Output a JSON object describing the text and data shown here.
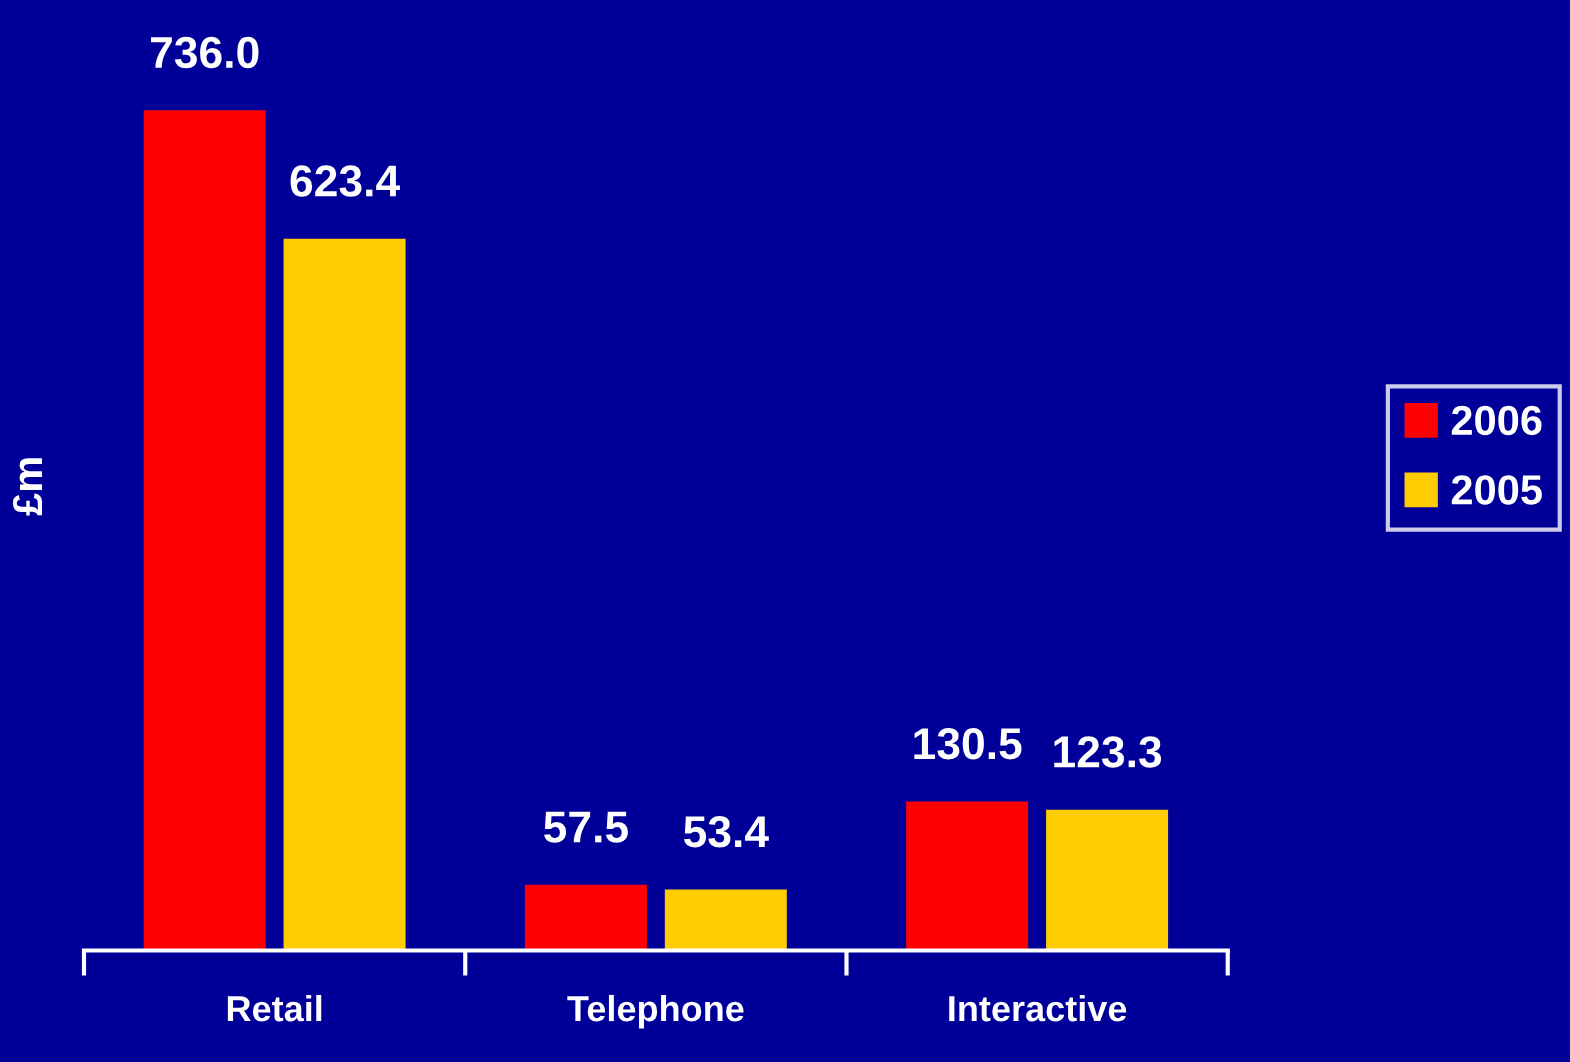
{
  "chart_data": {
    "type": "bar",
    "ylabel": "£m",
    "categories": [
      "Retail",
      "Telephone",
      "Interactive"
    ],
    "series": [
      {
        "name": "2006",
        "color": "#ff0000",
        "values": [
          736.0,
          57.5,
          130.5
        ],
        "value_labels": [
          "736.0",
          "57.5",
          "130.5"
        ]
      },
      {
        "name": "2005",
        "color": "#ffcc00",
        "values": [
          623.4,
          53.4,
          123.3
        ],
        "value_labels": [
          "623.4",
          "53.4",
          "123.3"
        ]
      }
    ],
    "legend": "right",
    "grid": false,
    "tick_labels": "x"
  }
}
